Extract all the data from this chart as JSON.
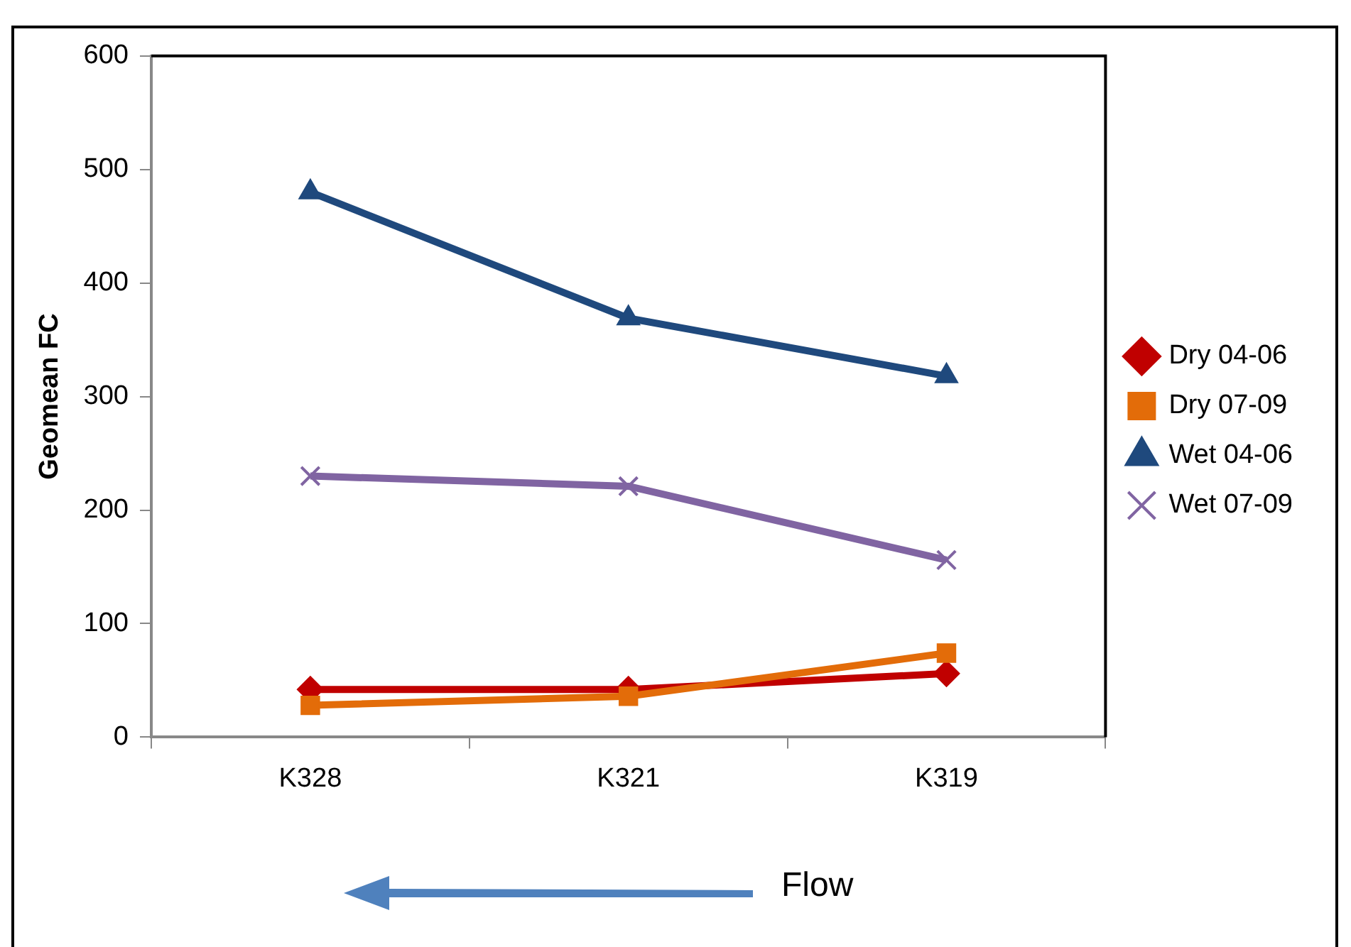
{
  "chart_data": {
    "type": "line",
    "ylabel": "Geomean FC",
    "categories": [
      "K328",
      "K321",
      "K319"
    ],
    "series": [
      {
        "name": "Dry 04-06",
        "color": "#c00000",
        "values": [
          42,
          42,
          56
        ],
        "marker": "diamond"
      },
      {
        "name": "Dry 07-09",
        "color": "#e36c09",
        "values": [
          28,
          36,
          74
        ],
        "marker": "square"
      },
      {
        "name": "Wet 04-06",
        "color": "#1f497d",
        "values": [
          480,
          369,
          318
        ],
        "marker": "triangle"
      },
      {
        "name": "Wet 07-09",
        "color": "#8064a2",
        "values": [
          230,
          221,
          156
        ],
        "marker": "cross"
      }
    ],
    "ylim": [
      0,
      600
    ],
    "yticks": [
      0,
      100,
      200,
      300,
      400,
      500,
      600
    ],
    "grid": false,
    "legend": "right",
    "line_style": "solid",
    "annotations": [
      "Flow"
    ]
  }
}
